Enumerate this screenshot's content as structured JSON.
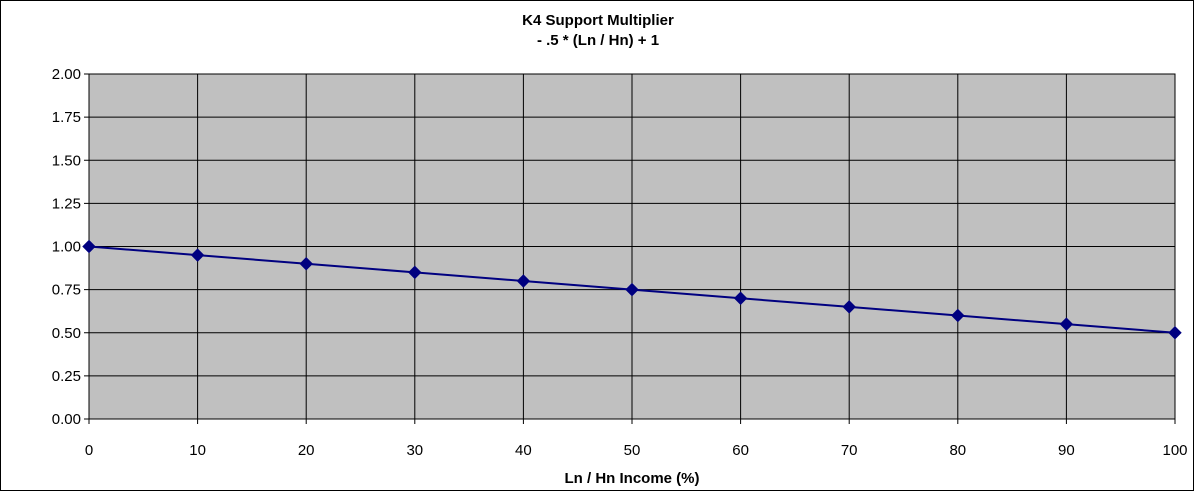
{
  "chart_data": {
    "type": "line",
    "title": "K4 Support Multiplier",
    "subtitle": "- .5 * (Ln / Hn) + 1",
    "xlabel": "Ln / Hn Income (%)",
    "ylabel": "",
    "xlim": [
      0,
      100
    ],
    "ylim": [
      0,
      2
    ],
    "x_ticks": [
      "0",
      "10",
      "20",
      "30",
      "40",
      "50",
      "60",
      "70",
      "80",
      "90",
      "100"
    ],
    "y_ticks": [
      "0.00",
      "0.25",
      "0.50",
      "0.75",
      "1.00",
      "1.25",
      "1.50",
      "1.75",
      "2.00"
    ],
    "grid": true,
    "legend": "none",
    "plot_background": "#c0c0c0",
    "series": [
      {
        "color": "#000080",
        "marker": "diamond",
        "x": [
          0,
          10,
          20,
          30,
          40,
          50,
          60,
          70,
          80,
          90,
          100
        ],
        "values": [
          1.0,
          0.95,
          0.9,
          0.85,
          0.8,
          0.75,
          0.7,
          0.65,
          0.6,
          0.55,
          0.5
        ]
      }
    ]
  }
}
